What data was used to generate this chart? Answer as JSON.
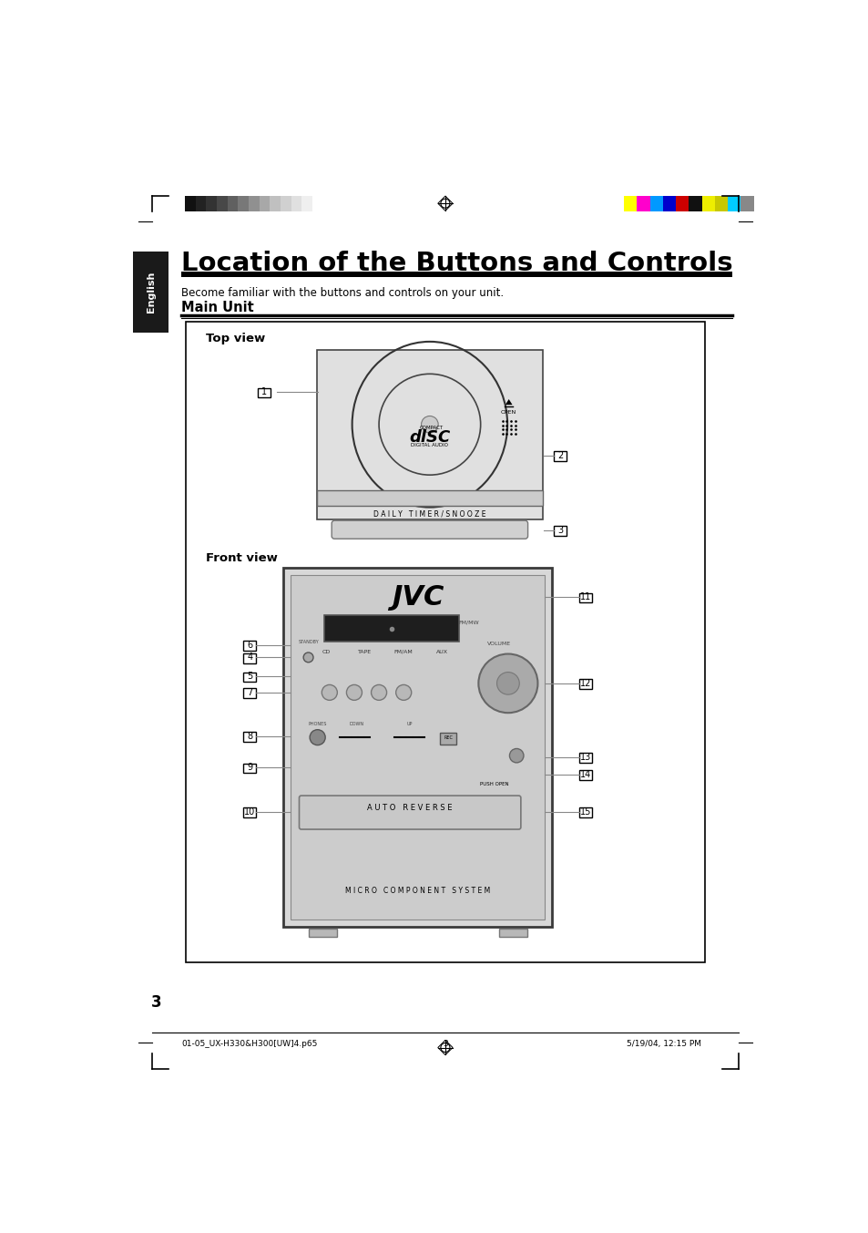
{
  "title": "Location of the Buttons and Controls",
  "subtitle": "Become familiar with the buttons and controls on your unit.",
  "section": "Main Unit",
  "tab_text": "English",
  "page_number": "3",
  "footer_left": "01-05_UX-H330&H300[UW]4.p65",
  "footer_center": "3",
  "footer_right": "5/19/04, 12:15 PM",
  "top_view_label": "Top view",
  "front_view_label": "Front view",
  "bg_color": "#ffffff",
  "tab_bg": "#1a1a1a",
  "tab_text_color": "#ffffff",
  "title_color": "#000000",
  "grayscale_colors": [
    "#111111",
    "#222222",
    "#333333",
    "#484848",
    "#606060",
    "#787878",
    "#909090",
    "#a8a8a8",
    "#c0c0c0",
    "#d0d0d0",
    "#e0e0e0",
    "#efefef",
    "#ffffff"
  ],
  "color_swatches": [
    "#ffff00",
    "#ff00cc",
    "#0099ff",
    "#0000cc",
    "#cc0000",
    "#111111",
    "#eeee00",
    "#c8c800",
    "#00ccff",
    "#888888"
  ],
  "device_body_color": "#e8e8e8",
  "device_border_color": "#555555",
  "device_dark": "#c0c0c0",
  "label_box_color": "#ffffff",
  "display_color": "#222222"
}
